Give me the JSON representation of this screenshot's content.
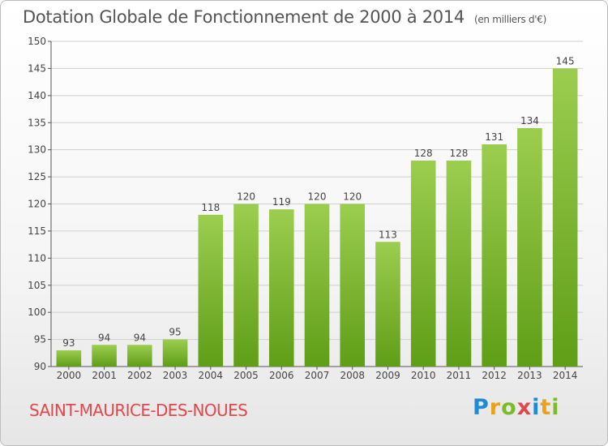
{
  "title": "Dotation Globale de Fonctionnement de 2000 à 2014",
  "subtitle": "(en milliers d'€)",
  "commune": "SAINT-MAURICE-DES-NOUES",
  "logo": {
    "letters": [
      "P",
      "r",
      "o",
      "x",
      "i",
      "t",
      "i"
    ],
    "colors": [
      "#1f8ad6",
      "#e9a21b",
      "#7cbb2a",
      "#e2474b",
      "#1f8ad6",
      "#e9a21b",
      "#7cbb2a"
    ]
  },
  "colors": {
    "bar_top": "#9ccd4f",
    "bar_bottom": "#5f9e17",
    "grid": "#cfcfcf",
    "title": "#555555",
    "commune": "#e2474b"
  },
  "chart_data": {
    "type": "bar",
    "categories": [
      "2000",
      "2001",
      "2002",
      "2003",
      "2004",
      "2005",
      "2006",
      "2007",
      "2008",
      "2009",
      "2010",
      "2011",
      "2012",
      "2013",
      "2014"
    ],
    "values": [
      93,
      94,
      94,
      95,
      118,
      120,
      119,
      120,
      120,
      113,
      128,
      128,
      131,
      134,
      145
    ],
    "data_labels": [
      "93",
      "94",
      "94",
      "95",
      "118",
      "120",
      "119",
      "120",
      "120",
      "113",
      "128",
      "128",
      "131",
      "134",
      "145"
    ],
    "yticks": [
      90,
      95,
      100,
      105,
      110,
      115,
      120,
      125,
      130,
      135,
      140,
      145,
      150
    ],
    "ylim": [
      90,
      150
    ],
    "grid": true,
    "xlabel": "",
    "ylabel": ""
  }
}
